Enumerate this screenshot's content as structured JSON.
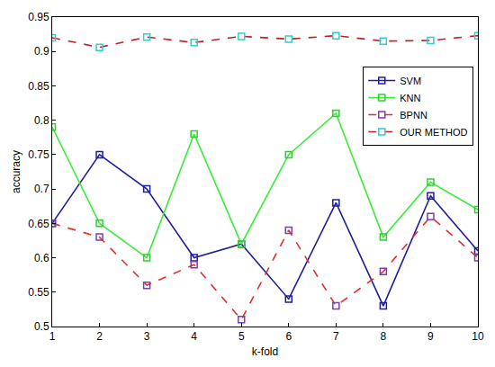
{
  "chart_data": {
    "type": "line",
    "x_label": "k-fold",
    "y_label": "accuracy",
    "x": [
      1,
      2,
      3,
      4,
      5,
      6,
      7,
      8,
      9,
      10
    ],
    "xlim": [
      1,
      10
    ],
    "xticks": [
      1,
      2,
      3,
      4,
      5,
      6,
      7,
      8,
      9,
      10
    ],
    "ylim": [
      0.5,
      0.95
    ],
    "yticks": [
      0.5,
      0.55,
      0.6,
      0.65,
      0.7,
      0.75,
      0.8,
      0.85,
      0.9,
      0.95
    ],
    "grid": false,
    "legend": "upper right",
    "series": [
      {
        "name": "SVM",
        "color": "#1f1f9e",
        "marker": "square",
        "line_style": "solid",
        "values": [
          0.65,
          0.75,
          0.7,
          0.6,
          0.62,
          0.54,
          0.68,
          0.53,
          0.69,
          0.61
        ]
      },
      {
        "name": "KNN",
        "color": "#33ee33",
        "marker": "square",
        "line_style": "solid",
        "values": [
          0.79,
          0.65,
          0.6,
          0.78,
          0.62,
          0.75,
          0.81,
          0.63,
          0.71,
          0.67
        ]
      },
      {
        "name": "BPNN",
        "color": "#e03030",
        "marker": "square",
        "line_style": "dash",
        "values": [
          0.65,
          0.63,
          0.56,
          0.59,
          0.51,
          0.64,
          0.53,
          0.58,
          0.66,
          0.6
        ]
      },
      {
        "name": "OUR METHOD",
        "color": "#c02020",
        "marker": "square",
        "line_style": "dash",
        "values": [
          0.92,
          0.906,
          0.921,
          0.913,
          0.922,
          0.918,
          0.923,
          0.915,
          0.916,
          0.923
        ]
      }
    ]
  }
}
